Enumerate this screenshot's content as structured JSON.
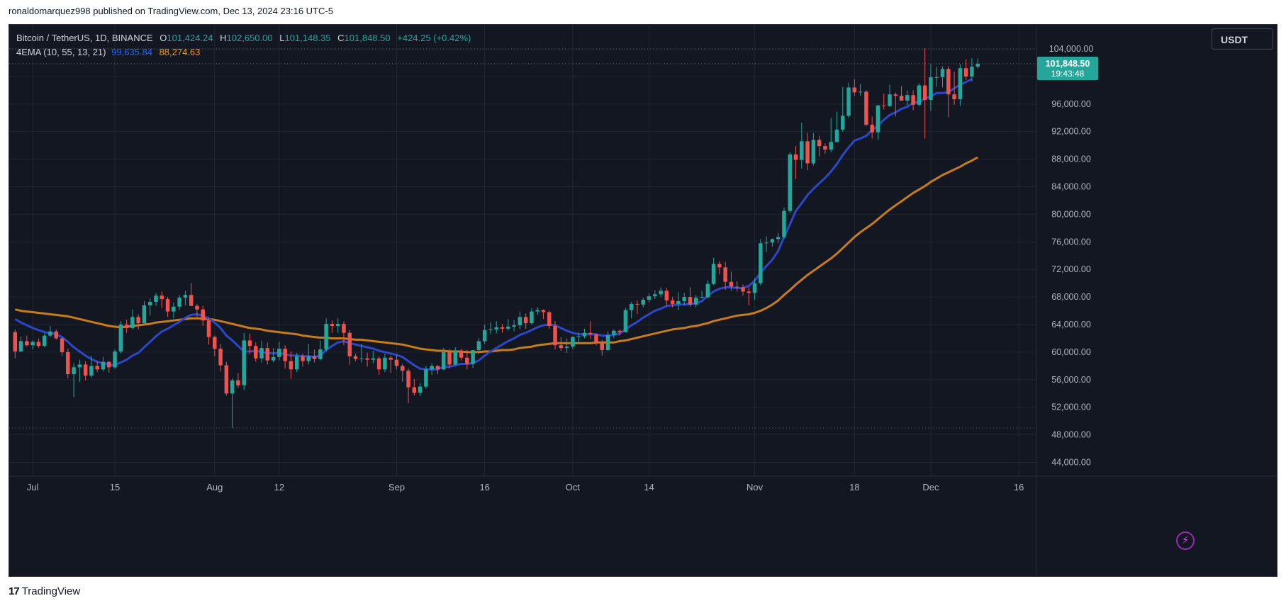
{
  "publish_line": "ronaldomarquez998 published on TradingView.com, Dec 13, 2024 23:16 UTC-5",
  "legend": {
    "symbol": "Bitcoin / TetherUS, 1D, BINANCE",
    "o_label": "O",
    "o_value": "101,424.24",
    "h_label": "H",
    "h_value": "102,650.00",
    "l_label": "L",
    "l_value": "101,148.35",
    "c_label": "C",
    "c_value": "101,848.50",
    "change": "+424.25 (+0.42%)",
    "indicator": "4EMA (10, 55, 13, 21)",
    "ema_fast_value": "99,635.84",
    "ema_slow_value": "88,274.63"
  },
  "currency": "USDT",
  "price_tag": {
    "price": "101,848.50",
    "countdown": "19:43:48"
  },
  "footer": {
    "logo": "17",
    "brand": "TradingView"
  },
  "colors": {
    "background": "#131722",
    "grid": "#232632",
    "up": "#26a69a",
    "down": "#ef5350",
    "ema_fast": "#2c48c8",
    "ema_slow": "#c77c1a",
    "axis_text": "#b2b5be"
  },
  "chart_data": {
    "type": "candlestick",
    "y_ticks": [
      44000,
      48000,
      52000,
      56000,
      60000,
      64000,
      68000,
      72000,
      76000,
      80000,
      84000,
      88000,
      92000,
      96000,
      100000,
      104000
    ],
    "y_tick_labels": [
      "44,000.00",
      "48,000.00",
      "52,000.00",
      "56,000.00",
      "60,000.00",
      "64,000.00",
      "68,000.00",
      "72,000.00",
      "76,000.00",
      "80,000.00",
      "84,000.00",
      "88,000.00",
      "92,000.00",
      "96,000.00",
      "",
      "104,000.00"
    ],
    "y_range": [
      42000,
      107500
    ],
    "x_ticks": [
      {
        "label": "Jul",
        "day": 3
      },
      {
        "label": "15",
        "day": 17
      },
      {
        "label": "Aug",
        "day": 34
      },
      {
        "label": "12",
        "day": 45
      },
      {
        "label": "Sep",
        "day": 65
      },
      {
        "label": "16",
        "day": 80
      },
      {
        "label": "Oct",
        "day": 95
      },
      {
        "label": "14",
        "day": 108
      },
      {
        "label": "Nov",
        "day": 126
      },
      {
        "label": "18",
        "day": 143
      },
      {
        "label": "Dec",
        "day": 156
      },
      {
        "label": "16",
        "day": 171
      }
    ],
    "x_range": [
      -1,
      174
    ],
    "dotted_levels": [
      104000,
      49000
    ],
    "last_price": 101848.5,
    "candles": [
      [
        62900,
        63300,
        59100,
        60100
      ],
      [
        60100,
        62300,
        60000,
        61600
      ],
      [
        61600,
        62400,
        60800,
        61000
      ],
      [
        61000,
        61700,
        60400,
        61500
      ],
      [
        61500,
        62000,
        60600,
        60900
      ],
      [
        60900,
        62700,
        60700,
        62400
      ],
      [
        62400,
        63800,
        62200,
        63000
      ],
      [
        63000,
        63300,
        61800,
        62000
      ],
      [
        62000,
        62100,
        59500,
        60000
      ],
      [
        60000,
        60500,
        56200,
        56800
      ],
      [
        56800,
        58400,
        53500,
        57800
      ],
      [
        57800,
        58900,
        55700,
        58200
      ],
      [
        58200,
        58700,
        55900,
        56600
      ],
      [
        56600,
        59500,
        56300,
        58000
      ],
      [
        58000,
        58700,
        57100,
        57500
      ],
      [
        57500,
        59300,
        57200,
        58600
      ],
      [
        58600,
        58700,
        57000,
        57800
      ],
      [
        57800,
        60400,
        57600,
        60100
      ],
      [
        60100,
        64500,
        59800,
        64000
      ],
      [
        64000,
        64700,
        62800,
        63500
      ],
      [
        63500,
        66200,
        63300,
        65100
      ],
      [
        65100,
        65500,
        63300,
        64200
      ],
      [
        64200,
        67400,
        64000,
        66800
      ],
      [
        66800,
        67800,
        65300,
        67300
      ],
      [
        67300,
        68600,
        66700,
        68200
      ],
      [
        68200,
        68800,
        66400,
        67700
      ],
      [
        67700,
        68000,
        65100,
        65900
      ],
      [
        65900,
        67200,
        64900,
        66600
      ],
      [
        66600,
        68300,
        66100,
        67900
      ],
      [
        67900,
        68900,
        66800,
        68300
      ],
      [
        68300,
        70000,
        66700,
        66700
      ],
      [
        66700,
        67000,
        65100,
        66200
      ],
      [
        66200,
        66700,
        63800,
        64600
      ],
      [
        64600,
        65000,
        61100,
        62200
      ],
      [
        62200,
        62400,
        59400,
        60500
      ],
      [
        60500,
        61200,
        57200,
        58100
      ],
      [
        58100,
        58600,
        53700,
        54000
      ],
      [
        54000,
        56200,
        49000,
        55900
      ],
      [
        55900,
        57000,
        54800,
        55200
      ],
      [
        55200,
        62800,
        54500,
        61700
      ],
      [
        61700,
        62700,
        59700,
        60900
      ],
      [
        60900,
        61400,
        58600,
        59100
      ],
      [
        59100,
        61600,
        58500,
        60600
      ],
      [
        60600,
        61400,
        58200,
        58800
      ],
      [
        58800,
        60600,
        58500,
        59300
      ],
      [
        59300,
        61500,
        58800,
        60500
      ],
      [
        60500,
        61000,
        57600,
        58700
      ],
      [
        58700,
        60100,
        56100,
        57500
      ],
      [
        57500,
        59900,
        57100,
        59400
      ],
      [
        59400,
        59800,
        57900,
        58700
      ],
      [
        58700,
        61200,
        58200,
        59400
      ],
      [
        59400,
        60400,
        58500,
        59000
      ],
      [
        59000,
        61700,
        58800,
        60400
      ],
      [
        60400,
        64900,
        60100,
        64100
      ],
      [
        64100,
        64600,
        62800,
        63800
      ],
      [
        63800,
        64900,
        62800,
        64100
      ],
      [
        64100,
        64500,
        61000,
        62800
      ],
      [
        62800,
        63200,
        58200,
        59400
      ],
      [
        59400,
        59800,
        58700,
        59000
      ],
      [
        59000,
        61200,
        58500,
        59100
      ],
      [
        59100,
        59900,
        57900,
        58900
      ],
      [
        58900,
        60200,
        58400,
        59100
      ],
      [
        59100,
        59400,
        56700,
        57500
      ],
      [
        57500,
        59800,
        57100,
        59200
      ],
      [
        59200,
        59500,
        57000,
        58900
      ],
      [
        58900,
        59600,
        57500,
        58000
      ],
      [
        58000,
        58300,
        55700,
        57300
      ],
      [
        57300,
        57600,
        52600,
        54900
      ],
      [
        54900,
        56100,
        53700,
        54100
      ],
      [
        54100,
        55500,
        53600,
        55000
      ],
      [
        55000,
        58000,
        54700,
        57500
      ],
      [
        57500,
        58400,
        56700,
        58000
      ],
      [
        58000,
        58100,
        56800,
        57500
      ],
      [
        57500,
        60600,
        57400,
        60000
      ],
      [
        60000,
        60500,
        57600,
        58200
      ],
      [
        58200,
        60700,
        58100,
        60200
      ],
      [
        60200,
        60500,
        58800,
        59200
      ],
      [
        59200,
        60300,
        57500,
        58300
      ],
      [
        58300,
        60300,
        57700,
        60300
      ],
      [
        60300,
        62000,
        59700,
        61600
      ],
      [
        61600,
        64000,
        61200,
        63200
      ],
      [
        63200,
        64300,
        62600,
        63300
      ],
      [
        63300,
        64500,
        62700,
        63600
      ],
      [
        63600,
        64100,
        62800,
        63400
      ],
      [
        63400,
        64800,
        63100,
        63700
      ],
      [
        63700,
        64700,
        63000,
        63900
      ],
      [
        63900,
        65900,
        63300,
        65100
      ],
      [
        65100,
        65600,
        63400,
        64200
      ],
      [
        64200,
        66400,
        64000,
        65900
      ],
      [
        65900,
        66500,
        65400,
        66100
      ],
      [
        66100,
        66200,
        64800,
        65800
      ],
      [
        65800,
        66000,
        63400,
        63800
      ],
      [
        63800,
        64500,
        60400,
        61000
      ],
      [
        61000,
        62200,
        60200,
        60600
      ],
      [
        60600,
        62000,
        59900,
        60800
      ],
      [
        60800,
        62300,
        60400,
        62200
      ],
      [
        62200,
        62900,
        61400,
        62300
      ],
      [
        62300,
        63400,
        62000,
        62800
      ],
      [
        62800,
        64500,
        61900,
        62600
      ],
      [
        62600,
        62700,
        61000,
        61400
      ],
      [
        61400,
        61800,
        59500,
        60300
      ],
      [
        60300,
        63000,
        60200,
        62500
      ],
      [
        62500,
        63300,
        62000,
        63100
      ],
      [
        63100,
        63300,
        62400,
        62900
      ],
      [
        62900,
        66400,
        62900,
        66100
      ],
      [
        66100,
        67300,
        64900,
        67000
      ],
      [
        67000,
        67500,
        65500,
        66900
      ],
      [
        66900,
        67900,
        66500,
        67600
      ],
      [
        67600,
        68500,
        67200,
        68100
      ],
      [
        68100,
        69000,
        67700,
        68400
      ],
      [
        68400,
        69400,
        68000,
        68900
      ],
      [
        68900,
        69300,
        66700,
        67500
      ],
      [
        67500,
        68000,
        66500,
        67000
      ],
      [
        67000,
        68700,
        66100,
        67400
      ],
      [
        67400,
        68600,
        66800,
        68000
      ],
      [
        68000,
        69400,
        66600,
        66900
      ],
      [
        66900,
        68300,
        66500,
        67900
      ],
      [
        67900,
        68900,
        67800,
        68000
      ],
      [
        68000,
        70400,
        67800,
        69900
      ],
      [
        69900,
        73700,
        69700,
        72800
      ],
      [
        72800,
        73200,
        71300,
        72300
      ],
      [
        72300,
        73100,
        69000,
        70200
      ],
      [
        70200,
        71700,
        68900,
        69500
      ],
      [
        69500,
        70300,
        68800,
        69400
      ],
      [
        69400,
        69800,
        68200,
        68800
      ],
      [
        68800,
        69400,
        66800,
        68600
      ],
      [
        68600,
        70700,
        67600,
        70000
      ],
      [
        70000,
        76400,
        69700,
        75800
      ],
      [
        75800,
        76800,
        74500,
        75900
      ],
      [
        75900,
        76500,
        75300,
        76400
      ],
      [
        76400,
        77300,
        75800,
        76700
      ],
      [
        76700,
        81000,
        76500,
        80500
      ],
      [
        80500,
        89000,
        80200,
        88700
      ],
      [
        88700,
        89900,
        85100,
        87900
      ],
      [
        87900,
        93300,
        86600,
        90600
      ],
      [
        90600,
        91800,
        86400,
        87400
      ],
      [
        87400,
        91800,
        87100,
        90800
      ],
      [
        90800,
        91400,
        88400,
        89900
      ],
      [
        89900,
        90300,
        88800,
        89400
      ],
      [
        89400,
        94000,
        89000,
        90500
      ],
      [
        90500,
        94900,
        90400,
        92300
      ],
      [
        92300,
        98500,
        92000,
        94300
      ],
      [
        94300,
        99100,
        94000,
        98400
      ],
      [
        98400,
        99600,
        97200,
        97700
      ],
      [
        97700,
        98900,
        97200,
        97800
      ],
      [
        97800,
        98000,
        92800,
        93000
      ],
      [
        93000,
        94200,
        91000,
        91900
      ],
      [
        91900,
        95900,
        90800,
        95800
      ],
      [
        95800,
        97500,
        95200,
        95700
      ],
      [
        95700,
        98800,
        95600,
        97400
      ],
      [
        97400,
        97700,
        94200,
        97200
      ],
      [
        97200,
        98600,
        96600,
        96500
      ],
      [
        96500,
        98000,
        95800,
        97300
      ],
      [
        97300,
        98000,
        95100,
        95900
      ],
      [
        95900,
        99000,
        95700,
        98700
      ],
      [
        98700,
        104100,
        91000,
        96600
      ],
      [
        96600,
        101800,
        95000,
        99900
      ],
      [
        99900,
        101400,
        98500,
        99900
      ],
      [
        99900,
        101500,
        98400,
        101100
      ],
      [
        101100,
        101500,
        94100,
        97400
      ],
      [
        97400,
        100700,
        95900,
        96700
      ],
      [
        96700,
        101800,
        95700,
        101200
      ],
      [
        101200,
        102500,
        99500,
        100000
      ],
      [
        100000,
        102650,
        99300,
        101424
      ],
      [
        101424,
        102650,
        101148,
        101848
      ]
    ],
    "ema_fast": [
      64800,
      64300,
      63900,
      63500,
      63200,
      62900,
      62800,
      62600,
      62200,
      61500,
      60700,
      60100,
      59500,
      59000,
      58600,
      58400,
      58200,
      58100,
      58500,
      58900,
      59500,
      59900,
      60700,
      61500,
      62300,
      63000,
      63400,
      63900,
      64400,
      65000,
      65400,
      65500,
      65300,
      64900,
      64300,
      63500,
      62400,
      61700,
      60900,
      60100,
      60100,
      60200,
      60000,
      59900,
      59800,
      59900,
      59700,
      59500,
      59500,
      59400,
      59400,
      59300,
      59500,
      60300,
      60900,
      61400,
      61600,
      61300,
      61100,
      60900,
      60700,
      60500,
      60200,
      60000,
      59800,
      59600,
      59300,
      58700,
      58100,
      57600,
      57500,
      57500,
      57500,
      57900,
      57900,
      58100,
      58300,
      58300,
      58400,
      58800,
      59500,
      60100,
      60600,
      61100,
      61600,
      62000,
      62500,
      62800,
      63200,
      63600,
      63900,
      64000,
      63900,
      63500,
      63100,
      62800,
      62600,
      62600,
      62600,
      62600,
      62400,
      62400,
      62500,
      62700,
      63300,
      63900,
      64400,
      65000,
      65500,
      66000,
      66300,
      66700,
      66800,
      66900,
      66900,
      67000,
      67100,
      67400,
      68200,
      68800,
      69200,
      69400,
      69400,
      69300,
      69300,
      69600,
      70400,
      71500,
      72500,
      73400,
      74700,
      76700,
      78500,
      80500,
      81600,
      82800,
      83700,
      84500,
      85300,
      86200,
      87300,
      88600,
      89700,
      90700,
      91000,
      91400,
      92200,
      92900,
      93700,
      94400,
      94800,
      95300,
      95600,
      96200,
      96300,
      96800,
      97100,
      97600,
      97600,
      97700,
      98300,
      98800,
      99200,
      99635
    ],
    "ema_slow": [
      66200,
      66000,
      65900,
      65800,
      65700,
      65600,
      65500,
      65400,
      65300,
      65200,
      65000,
      64800,
      64600,
      64400,
      64200,
      64000,
      63800,
      63700,
      63600,
      63700,
      63800,
      63900,
      64000,
      64100,
      64300,
      64400,
      64500,
      64600,
      64700,
      64800,
      64900,
      64900,
      64900,
      64800,
      64700,
      64500,
      64300,
      64100,
      63900,
      63700,
      63500,
      63400,
      63300,
      63100,
      63000,
      62900,
      62800,
      62700,
      62600,
      62400,
      62300,
      62200,
      62100,
      62100,
      62000,
      62000,
      62000,
      61900,
      61800,
      61800,
      61700,
      61600,
      61500,
      61400,
      61300,
      61200,
      61100,
      60900,
      60700,
      60500,
      60400,
      60300,
      60200,
      60200,
      60100,
      60100,
      60100,
      60000,
      60000,
      60000,
      60100,
      60100,
      60200,
      60300,
      60300,
      60400,
      60600,
      60700,
      60800,
      61000,
      61100,
      61200,
      61300,
      61300,
      61300,
      61300,
      61300,
      61300,
      61300,
      61400,
      61400,
      61400,
      61400,
      61600,
      61700,
      61900,
      62100,
      62300,
      62500,
      62700,
      62900,
      63100,
      63300,
      63400,
      63500,
      63700,
      63800,
      64000,
      64200,
      64500,
      64700,
      64900,
      65100,
      65300,
      65400,
      65500,
      65700,
      66000,
      66400,
      66900,
      67500,
      68300,
      69000,
      69800,
      70500,
      71200,
      71800,
      72400,
      73000,
      73600,
      74300,
      75100,
      75900,
      76700,
      77400,
      78000,
      78600,
      79300,
      80000,
      80700,
      81300,
      81900,
      82500,
      83100,
      83600,
      84100,
      84700,
      85200,
      85700,
      86100,
      86500,
      86900,
      87400,
      87800,
      88274
    ]
  }
}
